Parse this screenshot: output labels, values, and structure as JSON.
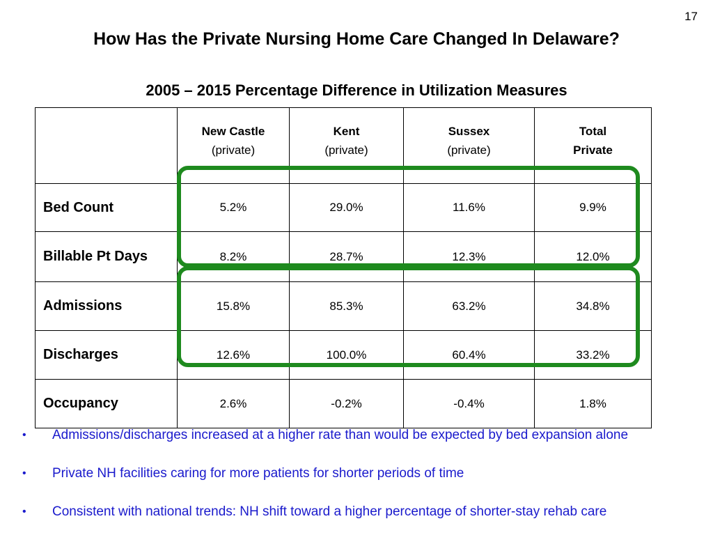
{
  "slide": {
    "number": "17",
    "title": "How Has the Private Nursing Home Care Changed In Delaware?",
    "subtitle": "2005 – 2015 Percentage Difference in Utilization Measures"
  },
  "table": {
    "columns": [
      {
        "name": "New Castle",
        "sub": "(private)"
      },
      {
        "name": "Kent",
        "sub": "(private)"
      },
      {
        "name": "Sussex",
        "sub": "(private)"
      },
      {
        "name": "Total",
        "sub": "Private"
      }
    ],
    "rows": [
      {
        "label": "Bed Count",
        "values": [
          "5.2%",
          "29.0%",
          "11.6%",
          "9.9%"
        ]
      },
      {
        "label": "Billable Pt Days",
        "values": [
          "8.2%",
          "28.7%",
          "12.3%",
          "12.0%"
        ]
      },
      {
        "label": "Admissions",
        "values": [
          "15.8%",
          "85.3%",
          "63.2%",
          "34.8%"
        ]
      },
      {
        "label": "Discharges",
        "values": [
          "12.6%",
          "100.0%",
          "60.4%",
          "33.2%"
        ]
      },
      {
        "label": "Occupancy",
        "values": [
          "2.6%",
          "-0.2%",
          "-0.4%",
          "1.8%"
        ]
      }
    ]
  },
  "highlight_color": "#1e8a1e",
  "bullet_color": "#1a1acc",
  "bullets": [
    "Admissions/discharges increased at a higher rate than would be expected by bed expansion alone",
    "Private NH facilities caring for more patients for shorter periods of time",
    "Consistent with national trends: NH shift toward a higher percentage of shorter-stay rehab care"
  ]
}
